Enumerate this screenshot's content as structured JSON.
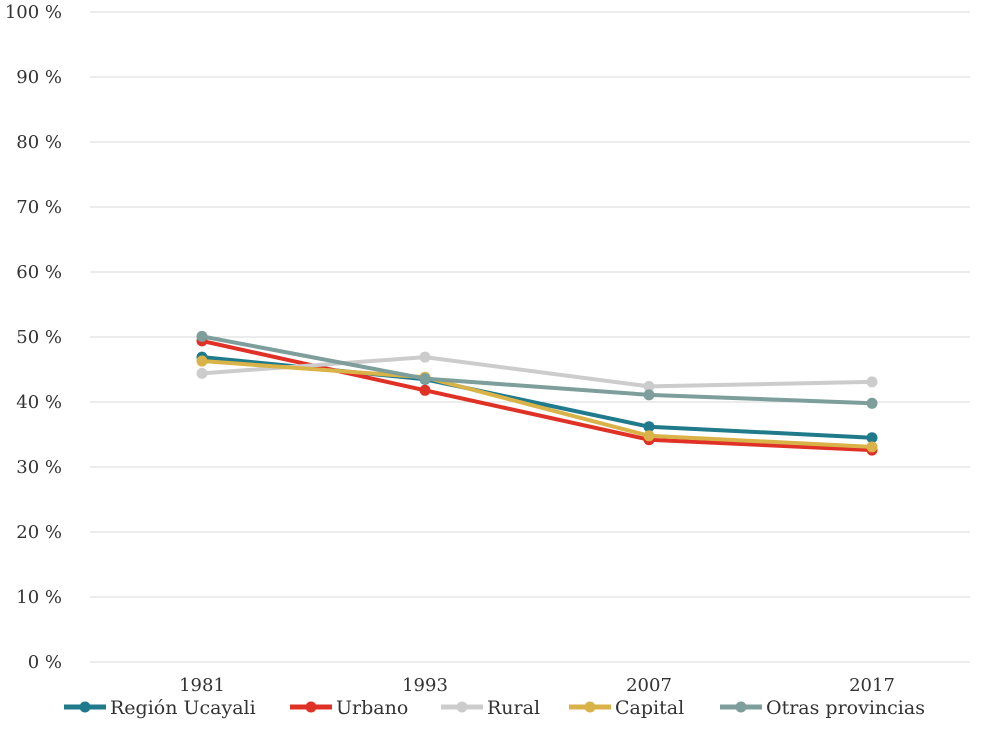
{
  "chart_data": {
    "type": "line",
    "title": "",
    "xlabel": "",
    "ylabel": "",
    "x": [
      "1981",
      "1993",
      "2007",
      "2017"
    ],
    "ylim": [
      0,
      100
    ],
    "y_ticks": [
      {
        "value": 0,
        "label": "0 %"
      },
      {
        "value": 10,
        "label": "10 %"
      },
      {
        "value": 20,
        "label": "20 %"
      },
      {
        "value": 30,
        "label": "30 %"
      },
      {
        "value": 40,
        "label": "40 %"
      },
      {
        "value": 50,
        "label": "50 %"
      },
      {
        "value": 60,
        "label": "60 %"
      },
      {
        "value": 70,
        "label": "70 %"
      },
      {
        "value": 80,
        "label": "80 %"
      },
      {
        "value": 90,
        "label": "90 %"
      },
      {
        "value": 100,
        "label": "100 %"
      }
    ],
    "grid": true,
    "legend_position": "bottom",
    "series": [
      {
        "name": "Región Ucayali",
        "color": "#1f7a8c",
        "values": [
          46.9,
          43.5,
          36.2,
          34.5
        ]
      },
      {
        "name": "Urbano",
        "color": "#e03127",
        "values": [
          49.4,
          41.8,
          34.2,
          32.6
        ]
      },
      {
        "name": "Rural",
        "color": "#cccccc",
        "values": [
          44.4,
          46.9,
          42.4,
          43.1
        ]
      },
      {
        "name": "Capital",
        "color": "#d9b248",
        "values": [
          46.3,
          43.8,
          34.8,
          33.1
        ]
      },
      {
        "name": "Otras provincias",
        "color": "#7d9e9a",
        "values": [
          50.1,
          43.6,
          41.1,
          39.8
        ]
      }
    ]
  }
}
